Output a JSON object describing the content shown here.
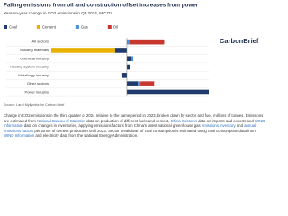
{
  "chart_data": {
    "type": "bar",
    "orientation": "horizontal",
    "stacked": true,
    "title": "Falling emissions from oil and construction offset increases from power",
    "subtitle": "Year-on-year change in CO2 emissions in Q3 2024, MtCO2",
    "categories": [
      "All sectors",
      "Building materials",
      "Chemical industry",
      "Heating system industry",
      "Metallurgy industry",
      "Other sectors",
      "Power industry"
    ],
    "series": [
      {
        "name": "Coal",
        "color": "#1f3a6b",
        "values": [
          0,
          -13,
          5,
          3,
          -5,
          12,
          90
        ]
      },
      {
        "name": "Cement",
        "color": "#e8b100",
        "values": [
          0,
          -70,
          0,
          0,
          0,
          0,
          0
        ]
      },
      {
        "name": "Gas",
        "color": "#4a90d9",
        "values": [
          3,
          0,
          2,
          0,
          0,
          3,
          0
        ]
      },
      {
        "name": "Oil",
        "color": "#c8372d",
        "values": [
          38,
          0,
          0,
          0,
          0,
          15,
          0
        ]
      }
    ],
    "source": "Source: Lauri Myllyvirta for Carbon Brief",
    "logo": "CarbonBrief"
  },
  "description": [
    {
      "text": "Change in CO2 emissions in the third quarter of 2024 relative to the same period in 2023, broken down by sector and fuel, millions of tonnes. Emissions are estimated from ",
      "link": false
    },
    {
      "text": "National Bureau of Statistics",
      "link": true
    },
    {
      "text": " data on production of different fuels and cement, ",
      "link": false
    },
    {
      "text": "China Customs",
      "link": true
    },
    {
      "text": " data on imports and exports and ",
      "link": false
    },
    {
      "text": "WIND Information",
      "link": true
    },
    {
      "text": " data on changes in inventories, applying emissions factors from China's latest national greenhouse gas ",
      "link": false
    },
    {
      "text": "emissions inventory",
      "link": true
    },
    {
      "text": " and ",
      "link": false
    },
    {
      "text": "annual emissions factors",
      "link": true
    },
    {
      "text": " per tonne of cement production until 2023. Sector breakdown of coal consumption is estimated using coal consumption data from ",
      "link": false
    },
    {
      "text": "WIND Information",
      "link": true
    },
    {
      "text": " and electricity data from the National Energy Administration.",
      "link": false
    }
  ]
}
